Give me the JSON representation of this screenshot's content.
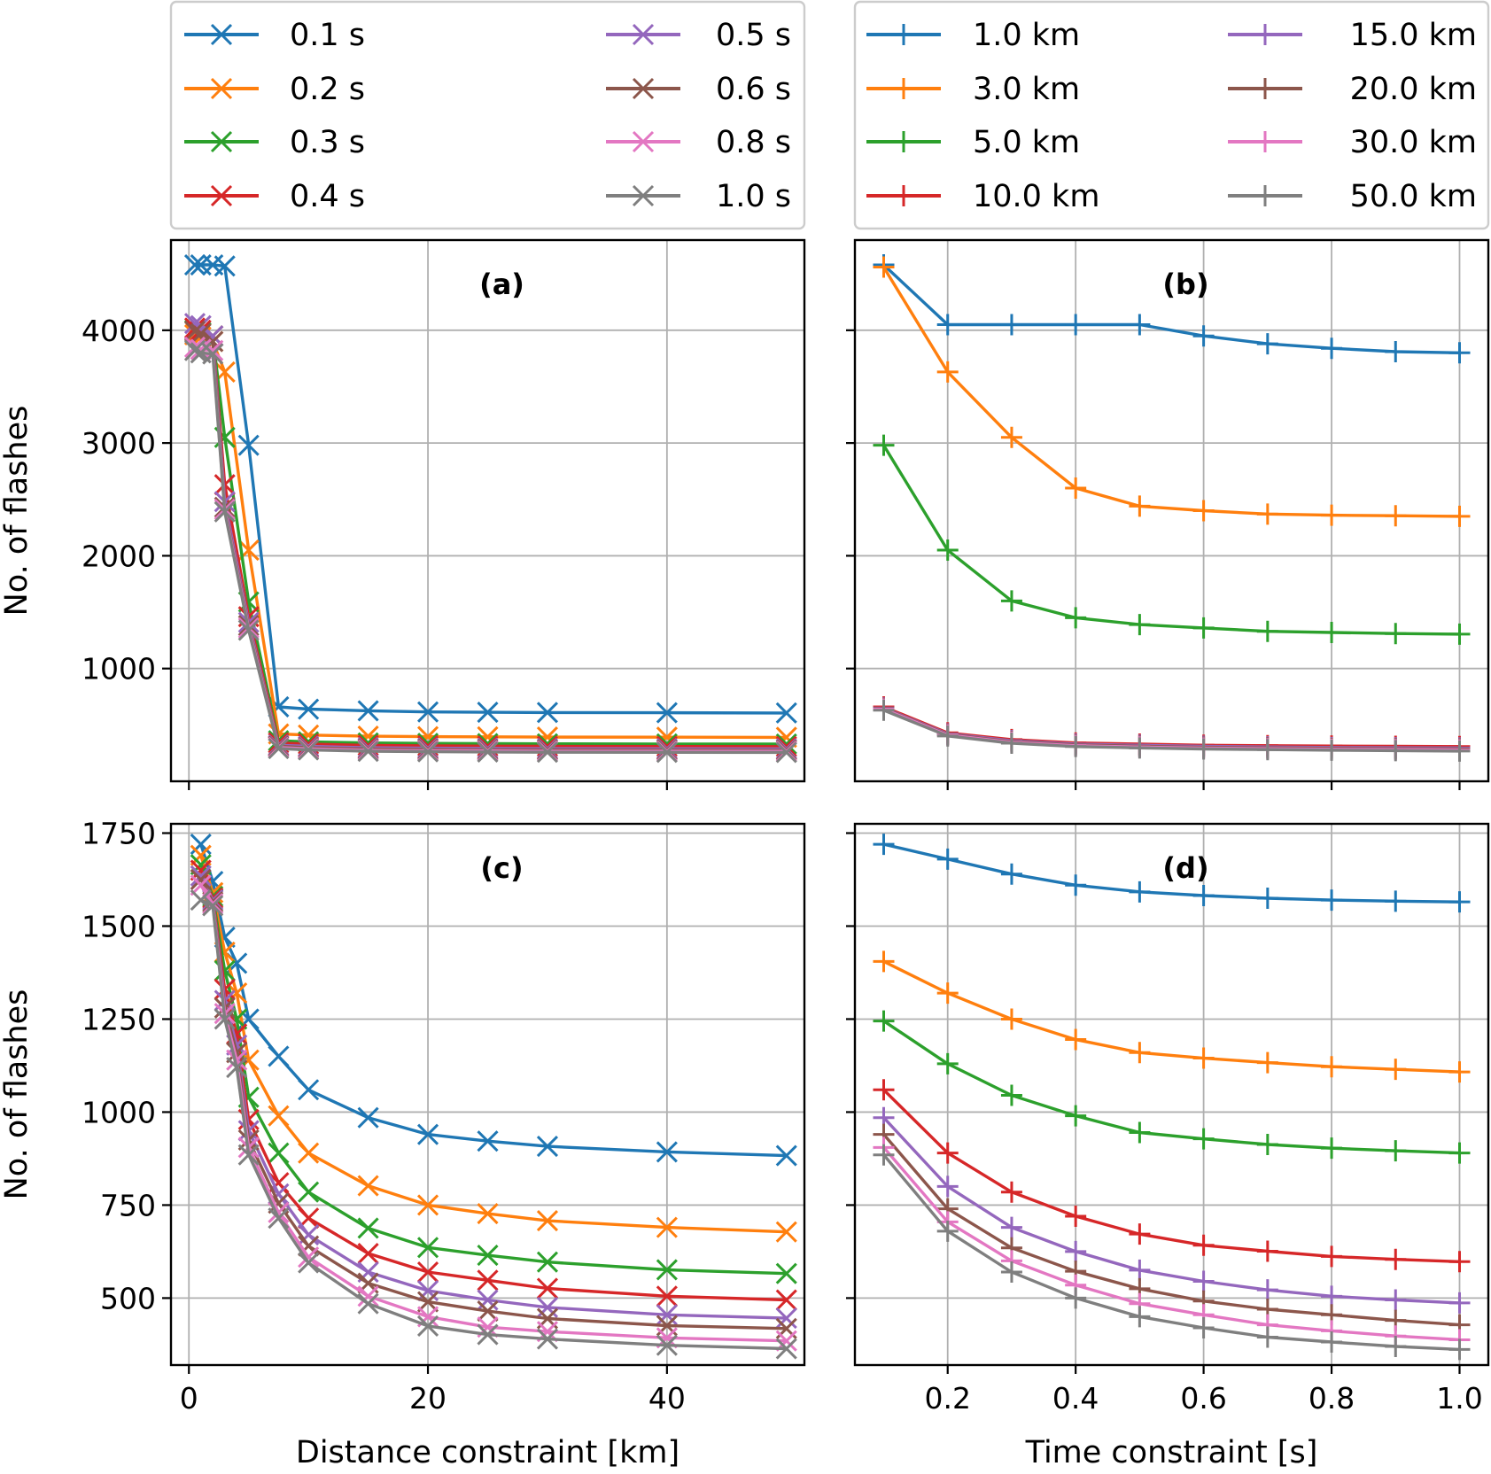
{
  "chart_data": [
    {
      "id": "a",
      "type": "line",
      "panel_label": "(a)",
      "xlabel": "",
      "ylabel": "No. of flashes",
      "xlim": [
        -1.5,
        51.5
      ],
      "ylim": [
        0,
        4800
      ],
      "x_ticks": [
        0,
        20,
        40
      ],
      "x_tick_labels_visible": false,
      "y_ticks": [
        1000,
        2000,
        3000,
        4000
      ],
      "y_tick_labels": [
        "1000",
        "2000",
        "3000",
        "4000"
      ],
      "marker": "x",
      "grid": true,
      "x": [
        0.5,
        1,
        2,
        3,
        5,
        7.5,
        10,
        15,
        20,
        25,
        30,
        40,
        50
      ],
      "series": [
        {
          "name": "0.1 s",
          "color": "#1f77b4",
          "values": [
            4580,
            4580,
            4580,
            4570,
            2980,
            660,
            640,
            625,
            615,
            612,
            610,
            608,
            606
          ]
        },
        {
          "name": "0.2 s",
          "color": "#ff7f0e",
          "values": [
            3960,
            3940,
            3900,
            3630,
            2050,
            420,
            410,
            400,
            396,
            394,
            392,
            391,
            390
          ]
        },
        {
          "name": "0.3 s",
          "color": "#2ca02c",
          "values": [
            4000,
            3980,
            3950,
            3050,
            1590,
            360,
            350,
            340,
            336,
            334,
            332,
            331,
            330
          ]
        },
        {
          "name": "0.4 s",
          "color": "#d62728",
          "values": [
            4020,
            4000,
            3950,
            2630,
            1460,
            340,
            330,
            318,
            314,
            312,
            310,
            309,
            308
          ]
        },
        {
          "name": "0.5 s",
          "color": "#9467bd",
          "values": [
            4060,
            4040,
            3950,
            2480,
            1410,
            320,
            310,
            298,
            294,
            292,
            290,
            289,
            288
          ]
        },
        {
          "name": "0.6 s",
          "color": "#8c564b",
          "values": [
            3990,
            3970,
            3900,
            2430,
            1380,
            310,
            298,
            286,
            282,
            280,
            278,
            277,
            276
          ]
        },
        {
          "name": "0.8 s",
          "color": "#e377c2",
          "values": [
            3850,
            3830,
            3820,
            2410,
            1360,
            300,
            288,
            276,
            272,
            270,
            268,
            267,
            266
          ]
        },
        {
          "name": "1.0 s",
          "color": "#7f7f7f",
          "values": [
            3820,
            3800,
            3790,
            2390,
            1340,
            290,
            278,
            266,
            262,
            260,
            258,
            257,
            256
          ]
        }
      ]
    },
    {
      "id": "b",
      "type": "line",
      "panel_label": "(b)",
      "xlabel": "",
      "ylabel": "",
      "xlim": [
        0.055,
        1.045
      ],
      "ylim": [
        0,
        4800
      ],
      "x_ticks": [
        0.2,
        0.4,
        0.6,
        0.8,
        1.0
      ],
      "x_tick_labels_visible": false,
      "y_ticks": [
        1000,
        2000,
        3000,
        4000
      ],
      "y_tick_labels_visible": false,
      "marker": "+",
      "grid": true,
      "x": [
        0.1,
        0.2,
        0.3,
        0.4,
        0.5,
        0.6,
        0.7,
        0.8,
        0.9,
        1.0
      ],
      "series": [
        {
          "name": "1.0 km",
          "color": "#1f77b4",
          "values": [
            4580,
            4050,
            4050,
            4050,
            4050,
            3950,
            3880,
            3840,
            3810,
            3800
          ]
        },
        {
          "name": "3.0 km",
          "color": "#ff7f0e",
          "values": [
            4560,
            3630,
            3050,
            2600,
            2440,
            2400,
            2370,
            2360,
            2355,
            2350
          ]
        },
        {
          "name": "5.0 km",
          "color": "#2ca02c",
          "values": [
            2980,
            2050,
            1600,
            1450,
            1390,
            1360,
            1330,
            1320,
            1310,
            1305
          ]
        },
        {
          "name": "10.0 km",
          "color": "#d62728",
          "values": [
            660,
            430,
            370,
            340,
            330,
            320,
            316,
            313,
            310,
            308
          ]
        },
        {
          "name": "15.0 km",
          "color": "#9467bd",
          "values": [
            650,
            420,
            360,
            330,
            320,
            310,
            305,
            300,
            298,
            296
          ]
        },
        {
          "name": "20.0 km",
          "color": "#8c564b",
          "values": [
            645,
            415,
            352,
            322,
            311,
            302,
            297,
            292,
            289,
            287
          ]
        },
        {
          "name": "30.0 km",
          "color": "#e377c2",
          "values": [
            640,
            410,
            346,
            316,
            304,
            295,
            289,
            284,
            281,
            278
          ]
        },
        {
          "name": "50.0 km",
          "color": "#7f7f7f",
          "values": [
            630,
            402,
            338,
            308,
            296,
            287,
            281,
            276,
            272,
            268
          ]
        }
      ]
    },
    {
      "id": "c",
      "type": "line",
      "panel_label": "(c)",
      "xlabel": "Distance constraint [km]",
      "ylabel": "No. of flashes",
      "xlim": [
        -1.5,
        51.5
      ],
      "ylim": [
        320,
        1775
      ],
      "x_ticks": [
        0,
        20,
        40
      ],
      "x_tick_labels": [
        "0",
        "20",
        "40"
      ],
      "y_ticks": [
        500,
        750,
        1000,
        1250,
        1500,
        1750
      ],
      "y_tick_labels": [
        "500",
        "750",
        "1000",
        "1250",
        "1500",
        "1750"
      ],
      "marker": "x",
      "grid": true,
      "x": [
        1,
        2,
        3,
        4,
        5,
        7.5,
        10,
        15,
        20,
        25,
        30,
        40,
        50
      ],
      "series": [
        {
          "name": "0.1 s",
          "color": "#1f77b4",
          "values": [
            1720,
            1620,
            1470,
            1400,
            1250,
            1150,
            1060,
            985,
            940,
            922,
            908,
            893,
            883
          ]
        },
        {
          "name": "0.2 s",
          "color": "#ff7f0e",
          "values": [
            1690,
            1590,
            1430,
            1320,
            1140,
            990,
            890,
            802,
            750,
            727,
            708,
            690,
            678
          ]
        },
        {
          "name": "0.3 s",
          "color": "#2ca02c",
          "values": [
            1665,
            1580,
            1380,
            1250,
            1040,
            890,
            785,
            688,
            636,
            615,
            597,
            576,
            566
          ]
        },
        {
          "name": "0.4 s",
          "color": "#d62728",
          "values": [
            1650,
            1575,
            1330,
            1210,
            980,
            810,
            715,
            620,
            570,
            548,
            526,
            505,
            495
          ]
        },
        {
          "name": "0.5 s",
          "color": "#9467bd",
          "values": [
            1635,
            1570,
            1300,
            1180,
            950,
            780,
            670,
            570,
            520,
            495,
            475,
            455,
            446
          ]
        },
        {
          "name": "0.6 s",
          "color": "#8c564b",
          "values": [
            1625,
            1565,
            1280,
            1160,
            925,
            755,
            640,
            540,
            490,
            465,
            445,
            426,
            418
          ]
        },
        {
          "name": "0.8 s",
          "color": "#e377c2",
          "values": [
            1610,
            1560,
            1265,
            1140,
            905,
            730,
            610,
            505,
            450,
            422,
            410,
            393,
            385
          ]
        },
        {
          "name": "1.0 s",
          "color": "#7f7f7f",
          "values": [
            1570,
            1555,
            1250,
            1120,
            885,
            715,
            595,
            485,
            425,
            402,
            390,
            373,
            364
          ]
        }
      ]
    },
    {
      "id": "d",
      "type": "line",
      "panel_label": "(d)",
      "xlabel": "Time constraint [s]",
      "ylabel": "",
      "xlim": [
        0.055,
        1.045
      ],
      "ylim": [
        320,
        1775
      ],
      "x_ticks": [
        0.2,
        0.4,
        0.6,
        0.8,
        1.0
      ],
      "x_tick_labels": [
        "0.2",
        "0.4",
        "0.6",
        "0.8",
        "1.0"
      ],
      "y_ticks": [
        500,
        750,
        1000,
        1250,
        1500,
        1750
      ],
      "y_tick_labels_visible": false,
      "marker": "+",
      "grid": true,
      "x": [
        0.1,
        0.2,
        0.3,
        0.4,
        0.5,
        0.6,
        0.7,
        0.8,
        0.9,
        1.0
      ],
      "series": [
        {
          "name": "1.0 km",
          "color": "#1f77b4",
          "values": [
            1720,
            1680,
            1640,
            1610,
            1592,
            1582,
            1575,
            1570,
            1567,
            1565
          ]
        },
        {
          "name": "3.0 km",
          "color": "#ff7f0e",
          "values": [
            1405,
            1320,
            1250,
            1195,
            1160,
            1145,
            1133,
            1122,
            1115,
            1108
          ]
        },
        {
          "name": "5.0 km",
          "color": "#2ca02c",
          "values": [
            1245,
            1130,
            1045,
            990,
            945,
            928,
            913,
            903,
            896,
            890
          ]
        },
        {
          "name": "10.0 km",
          "color": "#d62728",
          "values": [
            1060,
            890,
            785,
            720,
            672,
            642,
            626,
            612,
            604,
            598
          ]
        },
        {
          "name": "15.0 km",
          "color": "#9467bd",
          "values": [
            985,
            800,
            690,
            625,
            575,
            545,
            522,
            505,
            495,
            487
          ]
        },
        {
          "name": "20.0 km",
          "color": "#8c564b",
          "values": [
            940,
            740,
            635,
            572,
            525,
            492,
            470,
            455,
            440,
            428
          ]
        },
        {
          "name": "30.0 km",
          "color": "#e377c2",
          "values": [
            905,
            705,
            600,
            535,
            485,
            455,
            428,
            412,
            398,
            388
          ]
        },
        {
          "name": "50.0 km",
          "color": "#7f7f7f",
          "values": [
            885,
            680,
            570,
            500,
            450,
            420,
            395,
            382,
            370,
            362
          ]
        }
      ]
    }
  ],
  "legends": {
    "time": {
      "marker": "x",
      "entries": [
        {
          "label": "0.1 s",
          "color": "#1f77b4"
        },
        {
          "label": "0.2 s",
          "color": "#ff7f0e"
        },
        {
          "label": "0.3 s",
          "color": "#2ca02c"
        },
        {
          "label": "0.4 s",
          "color": "#d62728"
        },
        {
          "label": "0.5 s",
          "color": "#9467bd"
        },
        {
          "label": "0.6 s",
          "color": "#8c564b"
        },
        {
          "label": "0.8 s",
          "color": "#e377c2"
        },
        {
          "label": "1.0 s",
          "color": "#7f7f7f"
        }
      ]
    },
    "distance": {
      "marker": "+",
      "entries": [
        {
          "label": "1.0 km",
          "color": "#1f77b4"
        },
        {
          "label": "3.0 km",
          "color": "#ff7f0e"
        },
        {
          "label": "5.0 km",
          "color": "#2ca02c"
        },
        {
          "label": "10.0 km",
          "color": "#d62728"
        },
        {
          "label": "15.0 km",
          "color": "#9467bd"
        },
        {
          "label": "20.0 km",
          "color": "#8c564b"
        },
        {
          "label": "30.0 km",
          "color": "#e377c2"
        },
        {
          "label": "50.0 km",
          "color": "#7f7f7f"
        }
      ]
    }
  }
}
